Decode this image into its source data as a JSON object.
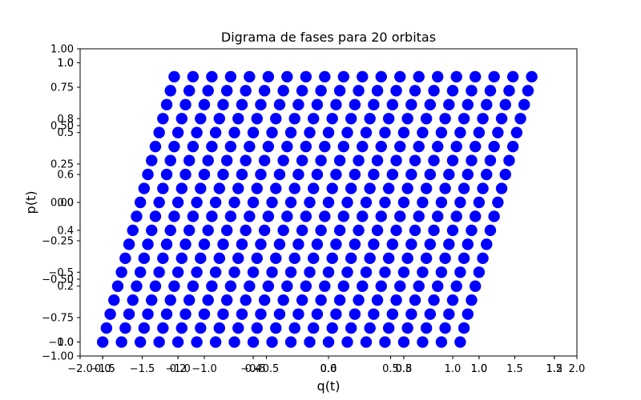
{
  "chart_data": {
    "type": "scatter",
    "title": "Digrama de fases para 20 orbitas",
    "xlabel": "q(t)",
    "ylabel": "p(t)",
    "color": "#0000ff",
    "grid": false,
    "legend": "none",
    "orbits": 20,
    "points_per_orbit": 20,
    "x_range": [
      0.0,
      1.2
    ],
    "y_range": [
      0.0,
      1.0
    ],
    "rows": [
      {
        "q": [
          0.0,
          0.05,
          0.1,
          0.15,
          0.2,
          0.25,
          0.3,
          0.35,
          0.4,
          0.45,
          0.5,
          0.55,
          0.6,
          0.65,
          0.7,
          0.75,
          0.8,
          0.85,
          0.9,
          0.95
        ],
        "p": [
          0.0,
          0.0,
          0.0,
          0.0,
          0.0,
          0.0,
          0.0,
          0.0,
          0.0,
          0.0,
          0.0,
          0.0,
          0.0,
          0.0,
          0.0,
          0.0,
          0.0,
          0.0,
          0.0,
          0.0
        ]
      },
      {
        "q": [
          0.01,
          0.06,
          0.11,
          0.16,
          0.21,
          0.26,
          0.31,
          0.36,
          0.41,
          0.46,
          0.51,
          0.56,
          0.61,
          0.66,
          0.71,
          0.76,
          0.81,
          0.86,
          0.91,
          0.96
        ],
        "p": [
          0.05,
          0.05,
          0.05,
          0.05,
          0.05,
          0.05,
          0.05,
          0.05,
          0.05,
          0.05,
          0.05,
          0.05,
          0.05,
          0.05,
          0.05,
          0.05,
          0.05,
          0.05,
          0.05,
          0.05
        ]
      },
      {
        "q": [
          0.02,
          0.07,
          0.12,
          0.17,
          0.22,
          0.27,
          0.32,
          0.37,
          0.42,
          0.47,
          0.52,
          0.57,
          0.62,
          0.67,
          0.72,
          0.77,
          0.82,
          0.87,
          0.92,
          0.97
        ],
        "p": [
          0.1,
          0.1,
          0.1,
          0.1,
          0.1,
          0.1,
          0.1,
          0.1,
          0.1,
          0.1,
          0.1,
          0.1,
          0.1,
          0.1,
          0.1,
          0.1,
          0.1,
          0.1,
          0.1,
          0.1
        ]
      },
      {
        "q": [
          0.03,
          0.08,
          0.13,
          0.18,
          0.23,
          0.28,
          0.33,
          0.38,
          0.43,
          0.48,
          0.53,
          0.58,
          0.63,
          0.68,
          0.73,
          0.78,
          0.83,
          0.88,
          0.93,
          0.98
        ],
        "p": [
          0.15,
          0.15,
          0.15,
          0.15,
          0.15,
          0.15,
          0.15,
          0.15,
          0.15,
          0.15,
          0.15,
          0.15,
          0.15,
          0.15,
          0.15,
          0.15,
          0.15,
          0.15,
          0.15,
          0.15
        ]
      },
      {
        "q": [
          0.04,
          0.09,
          0.14,
          0.19,
          0.24,
          0.29,
          0.34,
          0.39,
          0.44,
          0.49,
          0.54,
          0.59,
          0.64,
          0.69,
          0.74,
          0.79,
          0.84,
          0.89,
          0.94,
          0.99
        ],
        "p": [
          0.2,
          0.2,
          0.2,
          0.2,
          0.2,
          0.2,
          0.2,
          0.2,
          0.2,
          0.2,
          0.2,
          0.2,
          0.2,
          0.2,
          0.2,
          0.2,
          0.2,
          0.2,
          0.2,
          0.2
        ]
      },
      {
        "q": [
          0.05,
          0.1,
          0.15,
          0.2,
          0.25,
          0.3,
          0.35,
          0.4,
          0.45,
          0.5,
          0.55,
          0.6,
          0.65,
          0.7,
          0.75,
          0.8,
          0.85,
          0.9,
          0.95,
          1.0
        ],
        "p": [
          0.25,
          0.25,
          0.25,
          0.25,
          0.25,
          0.25,
          0.25,
          0.25,
          0.25,
          0.25,
          0.25,
          0.25,
          0.25,
          0.25,
          0.25,
          0.25,
          0.25,
          0.25,
          0.25,
          0.25
        ]
      },
      {
        "q": [
          0.06,
          0.11,
          0.16,
          0.21,
          0.26,
          0.31,
          0.36,
          0.41,
          0.46,
          0.51,
          0.56,
          0.61,
          0.66,
          0.71,
          0.76,
          0.81,
          0.86,
          0.91,
          0.96,
          1.01
        ],
        "p": [
          0.3,
          0.3,
          0.3,
          0.3,
          0.3,
          0.3,
          0.3,
          0.3,
          0.3,
          0.3,
          0.3,
          0.3,
          0.3,
          0.3,
          0.3,
          0.3,
          0.3,
          0.3,
          0.3,
          0.3
        ]
      },
      {
        "q": [
          0.07,
          0.12,
          0.17,
          0.22,
          0.27,
          0.32,
          0.37,
          0.42,
          0.47,
          0.52,
          0.57,
          0.62,
          0.67,
          0.72,
          0.77,
          0.82,
          0.87,
          0.92,
          0.97,
          1.02
        ],
        "p": [
          0.35,
          0.35,
          0.35,
          0.35,
          0.35,
          0.35,
          0.35,
          0.35,
          0.35,
          0.35,
          0.35,
          0.35,
          0.35,
          0.35,
          0.35,
          0.35,
          0.35,
          0.35,
          0.35,
          0.35
        ]
      },
      {
        "q": [
          0.08,
          0.13,
          0.18,
          0.23,
          0.28,
          0.33,
          0.38,
          0.43,
          0.48,
          0.53,
          0.58,
          0.63,
          0.68,
          0.73,
          0.78,
          0.83,
          0.88,
          0.93,
          0.98,
          1.03
        ],
        "p": [
          0.4,
          0.4,
          0.4,
          0.4,
          0.4,
          0.4,
          0.4,
          0.4,
          0.4,
          0.4,
          0.4,
          0.4,
          0.4,
          0.4,
          0.4,
          0.4,
          0.4,
          0.4,
          0.4,
          0.4
        ]
      },
      {
        "q": [
          0.09,
          0.14,
          0.19,
          0.24,
          0.29,
          0.34,
          0.39,
          0.44,
          0.49,
          0.54,
          0.59,
          0.64,
          0.69,
          0.74,
          0.79,
          0.84,
          0.89,
          0.94,
          0.99,
          1.04
        ],
        "p": [
          0.45,
          0.45,
          0.45,
          0.45,
          0.45,
          0.45,
          0.45,
          0.45,
          0.45,
          0.45,
          0.45,
          0.45,
          0.45,
          0.45,
          0.45,
          0.45,
          0.45,
          0.45,
          0.45,
          0.45
        ]
      },
      {
        "q": [
          0.1,
          0.15,
          0.2,
          0.25,
          0.3,
          0.35,
          0.4,
          0.45,
          0.5,
          0.55,
          0.6,
          0.65,
          0.7,
          0.75,
          0.8,
          0.85,
          0.9,
          0.95,
          1.0,
          1.05
        ],
        "p": [
          0.5,
          0.5,
          0.5,
          0.5,
          0.5,
          0.5,
          0.5,
          0.5,
          0.5,
          0.5,
          0.5,
          0.5,
          0.5,
          0.5,
          0.5,
          0.5,
          0.5,
          0.5,
          0.5,
          0.5
        ]
      },
      {
        "q": [
          0.11,
          0.16,
          0.21,
          0.26,
          0.31,
          0.36,
          0.41,
          0.46,
          0.51,
          0.56,
          0.61,
          0.66,
          0.71,
          0.76,
          0.81,
          0.86,
          0.91,
          0.96,
          1.01,
          1.06
        ],
        "p": [
          0.55,
          0.55,
          0.55,
          0.55,
          0.55,
          0.55,
          0.55,
          0.55,
          0.55,
          0.55,
          0.55,
          0.55,
          0.55,
          0.55,
          0.55,
          0.55,
          0.55,
          0.55,
          0.55,
          0.55
        ]
      },
      {
        "q": [
          0.12,
          0.17,
          0.22,
          0.27,
          0.32,
          0.37,
          0.42,
          0.47,
          0.52,
          0.57,
          0.62,
          0.67,
          0.72,
          0.77,
          0.82,
          0.87,
          0.92,
          0.97,
          1.02,
          1.07
        ],
        "p": [
          0.6,
          0.6,
          0.6,
          0.6,
          0.6,
          0.6,
          0.6,
          0.6,
          0.6,
          0.6,
          0.6,
          0.6,
          0.6,
          0.6,
          0.6,
          0.6,
          0.6,
          0.6,
          0.6,
          0.6
        ]
      },
      {
        "q": [
          0.13,
          0.18,
          0.23,
          0.28,
          0.33,
          0.38,
          0.43,
          0.48,
          0.53,
          0.58,
          0.63,
          0.68,
          0.73,
          0.78,
          0.83,
          0.88,
          0.93,
          0.98,
          1.03,
          1.08
        ],
        "p": [
          0.65,
          0.65,
          0.65,
          0.65,
          0.65,
          0.65,
          0.65,
          0.65,
          0.65,
          0.65,
          0.65,
          0.65,
          0.65,
          0.65,
          0.65,
          0.65,
          0.65,
          0.65,
          0.65,
          0.65
        ]
      },
      {
        "q": [
          0.14,
          0.19,
          0.24,
          0.29,
          0.34,
          0.39,
          0.44,
          0.49,
          0.54,
          0.59,
          0.64,
          0.69,
          0.74,
          0.79,
          0.84,
          0.89,
          0.94,
          0.99,
          1.04,
          1.09
        ],
        "p": [
          0.7,
          0.7,
          0.7,
          0.7,
          0.7,
          0.7,
          0.7,
          0.7,
          0.7,
          0.7,
          0.7,
          0.7,
          0.7,
          0.7,
          0.7,
          0.7,
          0.7,
          0.7,
          0.7,
          0.7
        ]
      },
      {
        "q": [
          0.15,
          0.2,
          0.25,
          0.3,
          0.35,
          0.4,
          0.45,
          0.5,
          0.55,
          0.6,
          0.65,
          0.7,
          0.75,
          0.8,
          0.85,
          0.9,
          0.95,
          1.0,
          1.05,
          1.1
        ],
        "p": [
          0.75,
          0.75,
          0.75,
          0.75,
          0.75,
          0.75,
          0.75,
          0.75,
          0.75,
          0.75,
          0.75,
          0.75,
          0.75,
          0.75,
          0.75,
          0.75,
          0.75,
          0.75,
          0.75,
          0.75
        ]
      },
      {
        "q": [
          0.16,
          0.21,
          0.26,
          0.31,
          0.36,
          0.41,
          0.46,
          0.51,
          0.56,
          0.61,
          0.66,
          0.71,
          0.76,
          0.81,
          0.86,
          0.91,
          0.96,
          1.01,
          1.06,
          1.11
        ],
        "p": [
          0.8,
          0.8,
          0.8,
          0.8,
          0.8,
          0.8,
          0.8,
          0.8,
          0.8,
          0.8,
          0.8,
          0.8,
          0.8,
          0.8,
          0.8,
          0.8,
          0.8,
          0.8,
          0.8,
          0.8
        ]
      },
      {
        "q": [
          0.17,
          0.22,
          0.27,
          0.32,
          0.37,
          0.42,
          0.47,
          0.52,
          0.57,
          0.62,
          0.67,
          0.72,
          0.77,
          0.82,
          0.87,
          0.92,
          0.97,
          1.02,
          1.07,
          1.12
        ],
        "p": [
          0.85,
          0.85,
          0.85,
          0.85,
          0.85,
          0.85,
          0.85,
          0.85,
          0.85,
          0.85,
          0.85,
          0.85,
          0.85,
          0.85,
          0.85,
          0.85,
          0.85,
          0.85,
          0.85,
          0.85
        ]
      },
      {
        "q": [
          0.18,
          0.23,
          0.28,
          0.33,
          0.38,
          0.43,
          0.48,
          0.53,
          0.58,
          0.63,
          0.68,
          0.73,
          0.78,
          0.83,
          0.88,
          0.93,
          0.98,
          1.03,
          1.08,
          1.13
        ],
        "p": [
          0.9,
          0.9,
          0.9,
          0.9,
          0.9,
          0.9,
          0.9,
          0.9,
          0.9,
          0.9,
          0.9,
          0.9,
          0.9,
          0.9,
          0.9,
          0.9,
          0.9,
          0.9,
          0.9,
          0.9
        ]
      },
      {
        "q": [
          0.19,
          0.24,
          0.29,
          0.34,
          0.39,
          0.44,
          0.49,
          0.54,
          0.59,
          0.64,
          0.69,
          0.74,
          0.79,
          0.84,
          0.89,
          0.94,
          0.99,
          1.04,
          1.09,
          1.14
        ],
        "p": [
          0.95,
          0.95,
          0.95,
          0.95,
          0.95,
          0.95,
          0.95,
          0.95,
          0.95,
          0.95,
          0.95,
          0.95,
          0.95,
          0.95,
          0.95,
          0.95,
          0.95,
          0.95,
          0.95,
          0.95
        ]
      }
    ],
    "outer_axes": {
      "xticks": [
        "−2.0",
        "−1.5",
        "−1.0",
        "−0.5",
        "0.0",
        "0.5",
        "1.0",
        "1.5",
        "2.0"
      ],
      "yticks": [
        "1.00",
        "0.75",
        "0.50",
        "0.25",
        "0.00",
        "−0.25",
        "−0.50",
        "−0.75",
        "−1.00"
      ],
      "xlim": [
        -2.0,
        2.0
      ],
      "ylim": [
        -1.0,
        1.0
      ]
    },
    "overlay_axes": [
      {
        "xticks": [
          "−1.5",
          "−1.0",
          "−0.5",
          "0.0",
          "0.5",
          "1.0",
          "1.5"
        ],
        "yticks": [
          "1.0",
          "0.5",
          "0.0",
          "−0.5",
          "−1.0"
        ],
        "xlim": [
          -1.65,
          1.65
        ],
        "ylim": [
          -1.1,
          1.1
        ]
      },
      {
        "xticks": [
          "0.0",
          "0.2",
          "0.4",
          "0.6",
          "0.8",
          "1.0",
          "1.2"
        ],
        "yticks": [
          "0.0",
          "0.2",
          "0.4",
          "0.6",
          "0.8",
          "1.0"
        ],
        "xlim": [
          -0.06,
          1.26
        ],
        "ylim": [
          -0.05,
          1.05
        ]
      }
    ]
  }
}
